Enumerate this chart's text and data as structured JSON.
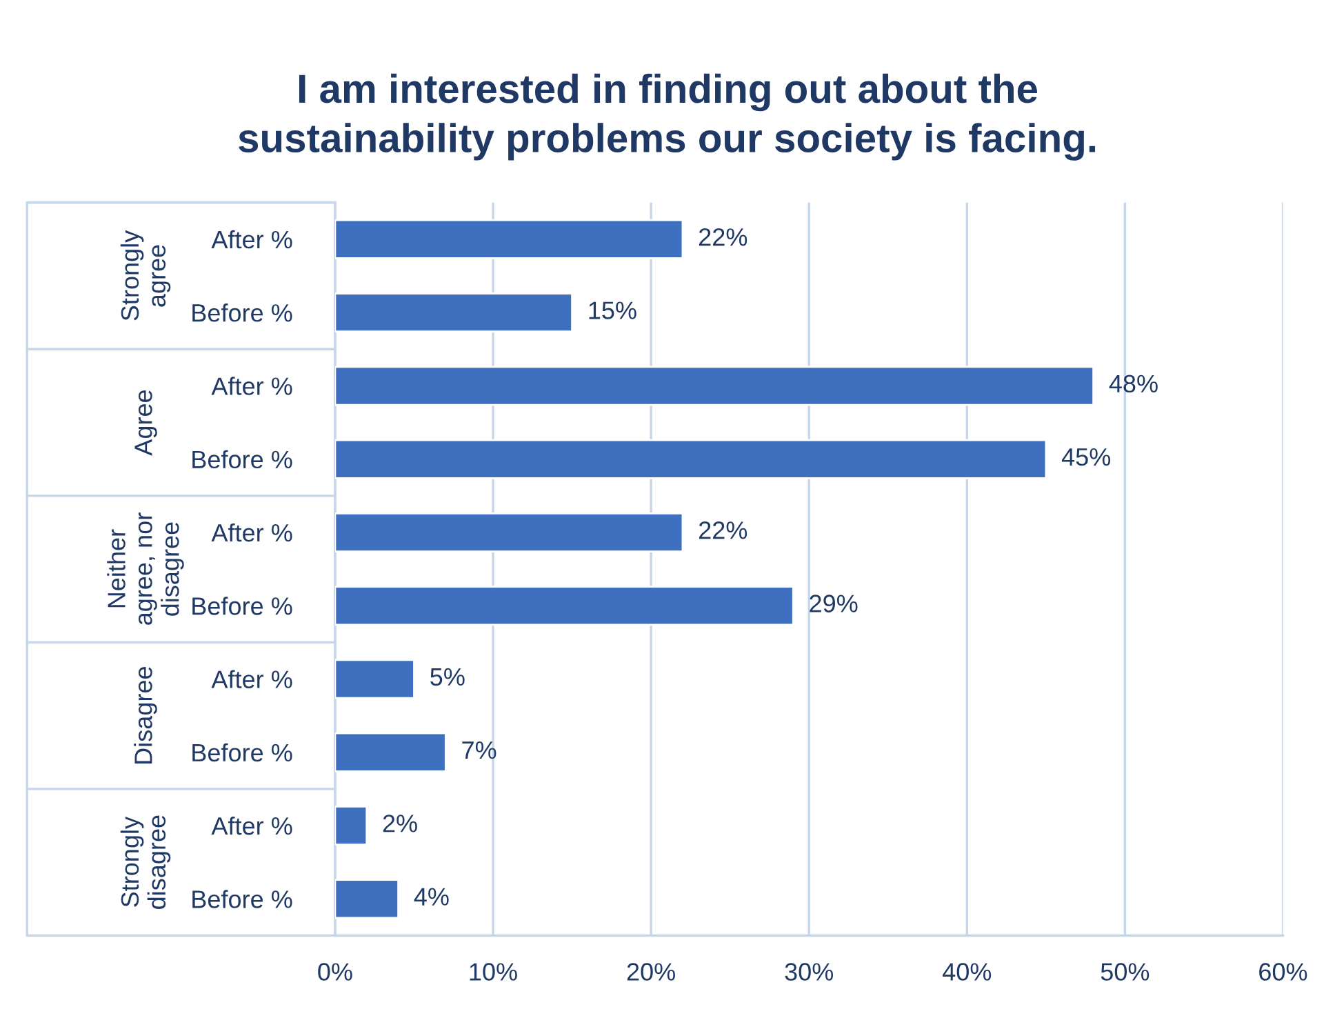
{
  "chart_data": {
    "type": "bar",
    "orientation": "horizontal",
    "title": "I am interested in finding out about the\nsustainability problems our society is facing.",
    "categories": [
      "After %",
      "Before %",
      "After %",
      "Before %",
      "After %",
      "Before %",
      "After %",
      "Before %",
      "After %",
      "Before %"
    ],
    "values": [
      22,
      15,
      48,
      45,
      22,
      29,
      5,
      7,
      2,
      4
    ],
    "value_labels": [
      "22%",
      "15%",
      "48%",
      "45%",
      "22%",
      "29%",
      "5%",
      "7%",
      "2%",
      "4%"
    ],
    "color": "#3f6fbf",
    "annotations": [
      "Strongly\nagree",
      "Agree",
      "Neither\nagree, nor\ndisagree",
      "Disagree",
      "Strongly\ndisagree"
    ],
    "xlim": [
      0,
      60
    ],
    "xticks": [
      {
        "value": 0,
        "label": "0%"
      },
      {
        "value": 10,
        "label": "10%"
      },
      {
        "value": 20,
        "label": "20%"
      },
      {
        "value": 30,
        "label": "30%"
      },
      {
        "value": 40,
        "label": "40%"
      },
      {
        "value": 50,
        "label": "50%"
      },
      {
        "value": 60,
        "label": "60%"
      }
    ],
    "grid": "x",
    "legend": false
  }
}
